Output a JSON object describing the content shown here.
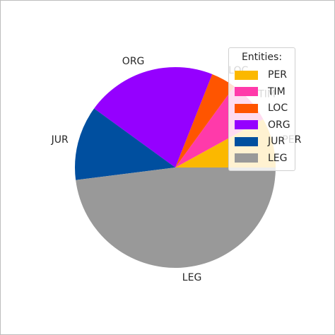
{
  "chart_data": {
    "type": "pie",
    "categories": [
      "PER",
      "TIM",
      "LOC",
      "ORG",
      "JUR",
      "LEG"
    ],
    "values": [
      8,
      7,
      4,
      21,
      12,
      48
    ],
    "colors": [
      "#fbb800",
      "#ff3aaa",
      "#ff5500",
      "#9500ff",
      "#004f9f",
      "#999999"
    ],
    "start_angle_deg": 0,
    "direction": "counterclockwise",
    "legend": {
      "title": "Entities:",
      "placement": "top-right",
      "entries": [
        "PER",
        "TIM",
        "LOC",
        "ORG",
        "JUR",
        "LEG"
      ]
    }
  }
}
